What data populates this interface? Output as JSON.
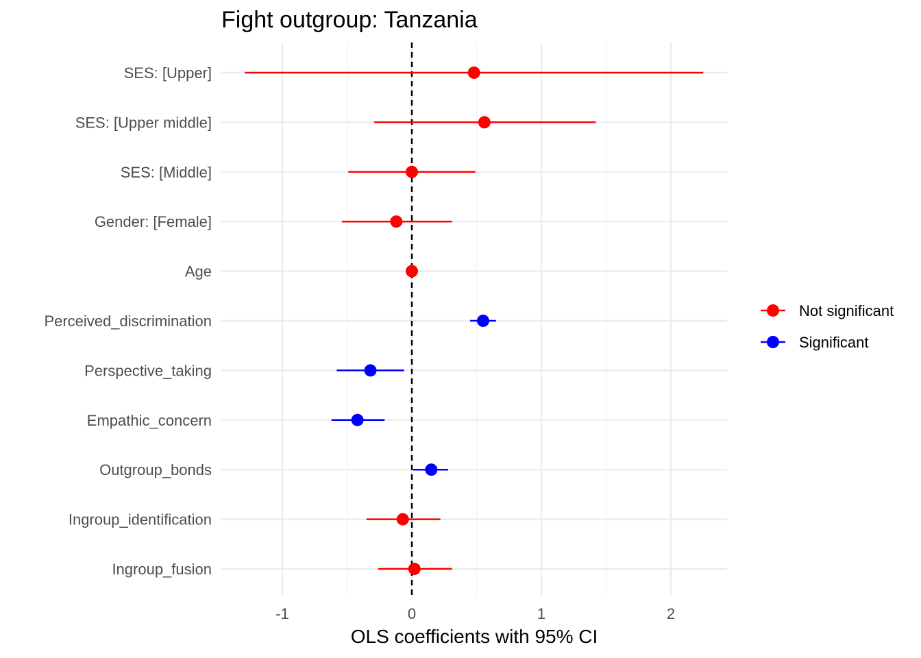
{
  "chart_data": {
    "type": "scatter",
    "title": "Fight outgroup: Tanzania",
    "xlabel": "OLS coefficients with 95% CI",
    "ylabel": "",
    "xlim": [
      -1.47,
      2.43
    ],
    "x_ticks": [
      -1,
      0,
      1,
      2
    ],
    "x_tick_labels": [
      "-1",
      "0",
      "1",
      "2"
    ],
    "reference_line": 0,
    "grid": true,
    "legend_position": "right",
    "colors": {
      "Not significant": "#ff0000",
      "Significant": "#0000ff"
    },
    "legend": [
      "Not significant",
      "Significant"
    ],
    "rows": [
      {
        "label": "SES:  [Upper]",
        "estimate": 0.48,
        "lower": -1.29,
        "upper": 2.25,
        "group": "Not significant"
      },
      {
        "label": "SES:  [Upper middle]",
        "estimate": 0.56,
        "lower": -0.29,
        "upper": 1.42,
        "group": "Not significant"
      },
      {
        "label": "SES:  [Middle]",
        "estimate": 0.0,
        "lower": -0.49,
        "upper": 0.49,
        "group": "Not significant"
      },
      {
        "label": "Gender:  [Female]",
        "estimate": -0.12,
        "lower": -0.54,
        "upper": 0.31,
        "group": "Not significant"
      },
      {
        "label": "Age",
        "estimate": 0.0,
        "lower": -0.01,
        "upper": 0.01,
        "group": "Not significant"
      },
      {
        "label": "Perceived_discrimination",
        "estimate": 0.55,
        "lower": 0.45,
        "upper": 0.65,
        "group": "Significant"
      },
      {
        "label": "Perspective_taking",
        "estimate": -0.32,
        "lower": -0.58,
        "upper": -0.06,
        "group": "Significant"
      },
      {
        "label": "Empathic_concern",
        "estimate": -0.42,
        "lower": -0.62,
        "upper": -0.21,
        "group": "Significant"
      },
      {
        "label": "Outgroup_bonds",
        "estimate": 0.15,
        "lower": 0.01,
        "upper": 0.28,
        "group": "Significant"
      },
      {
        "label": "Ingroup_identification",
        "estimate": -0.07,
        "lower": -0.35,
        "upper": 0.22,
        "group": "Not significant"
      },
      {
        "label": "Ingroup_fusion",
        "estimate": 0.02,
        "lower": -0.26,
        "upper": 0.31,
        "group": "Not significant"
      }
    ]
  }
}
